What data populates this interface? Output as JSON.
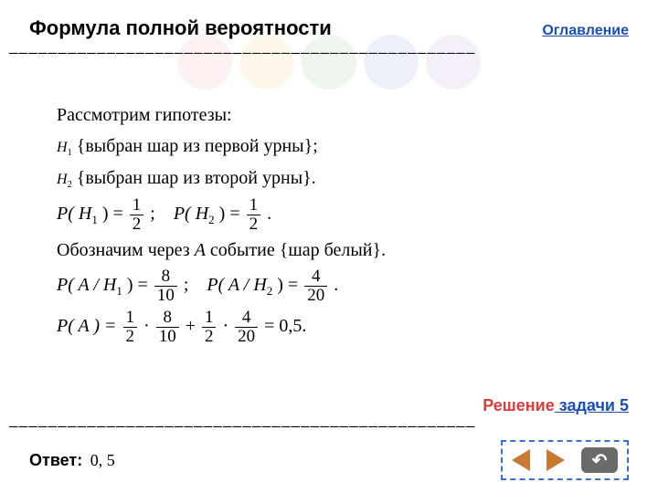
{
  "header": {
    "title": "Формула полной вероятности",
    "toc_label": "Оглавление",
    "toc_color": "#1a4fb5"
  },
  "circles": [
    "#f28c8c",
    "#f2c84a",
    "#7ab96b",
    "#6a8fd8",
    "#b07fd8"
  ],
  "dash_line": "————————————————————————————————————————————————",
  "content": {
    "line1": "Рассмотрим гипотезы:",
    "h1_label": "H",
    "h1_sub": "1",
    "h1_text": " {выбран шар из первой урны};",
    "h2_label": "H",
    "h2_sub": "2",
    "h2_text": " {выбран шар из второй урны}.",
    "p_h1_lhs": "P( H",
    "p_h1_sub": "1",
    "p_h1_rhs": " ) =",
    "frac_half_num": "1",
    "frac_half_den": "2",
    "semicolon": ";",
    "p_h2_lhs": "P( H",
    "p_h2_sub": "2",
    "p_h2_rhs": " ) =",
    "period": ".",
    "line_denote": "Обозначим через ",
    "A_letter": "A",
    "line_denote2": " событие {шар белый}.",
    "pah1_lhs": "P( A / H",
    "pah1_sub": "1",
    "pah1_rhs": " ) =",
    "frac_8_num": "8",
    "frac_8_den": "10",
    "pah2_lhs": "P( A / H",
    "pah2_sub": "2",
    "pah2_rhs": " ) =",
    "frac_4_num": "4",
    "frac_4_den": "20",
    "pa_lhs": "P( A ) =",
    "mult_dot": "·",
    "plus": "+",
    "eq_result": "= 0,5."
  },
  "footer": {
    "solution_label": "Решение",
    "solution_color": "#e03a3a",
    "task_label": " задачи 5",
    "task_color": "#1a4fb5",
    "answer_label": "Ответ:",
    "answer_value": " 0, 5",
    "nav_prev_color": "#c97a32",
    "nav_next_color": "#c97a32",
    "nav_return_color": "#6a6a6a",
    "nav_return_glyph": "↶"
  }
}
